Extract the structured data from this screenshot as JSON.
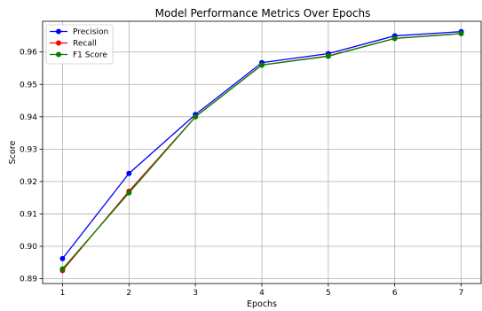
{
  "chart_data": {
    "type": "line",
    "title": "Model Performance Metrics Over Epochs",
    "xlabel": "Epochs",
    "ylabel": "Score",
    "x": [
      1,
      2,
      3,
      4,
      5,
      6,
      7
    ],
    "xlim": [
      0.7,
      7.3
    ],
    "ylim": [
      0.8885,
      0.9695
    ],
    "yticks": [
      0.89,
      0.9,
      0.91,
      0.92,
      0.93,
      0.94,
      0.95,
      0.96
    ],
    "yticks_text": [
      "0.89",
      "0.90",
      "0.91",
      "0.92",
      "0.93",
      "0.94",
      "0.95",
      "0.96"
    ],
    "xticks_text": [
      "1",
      "2",
      "3",
      "4",
      "5",
      "6",
      "7"
    ],
    "grid": true,
    "legend_position": "top-left",
    "series": [
      {
        "name": "Precision",
        "color": "#0000ff",
        "values": [
          0.8962,
          0.9225,
          0.9407,
          0.9567,
          0.9595,
          0.965,
          0.9663
        ]
      },
      {
        "name": "Recall",
        "color": "#ff0000",
        "values": [
          0.8925,
          0.917,
          0.94,
          0.956,
          0.9588,
          0.9642,
          0.9657
        ]
      },
      {
        "name": "F1 Score",
        "color": "#008000",
        "values": [
          0.893,
          0.9165,
          0.94,
          0.956,
          0.9587,
          0.9642,
          0.9657
        ]
      }
    ]
  }
}
